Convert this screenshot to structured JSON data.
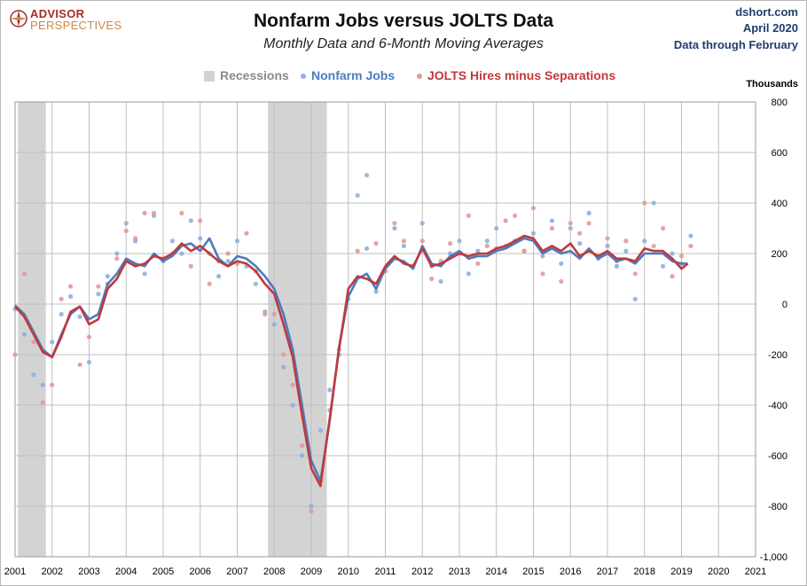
{
  "header": {
    "logo_line1": "ADVISOR",
    "logo_line2": "PERSPECTIVES",
    "title": "Nonfarm Jobs versus JOLTS Data",
    "subtitle": "Monthly Data and 6-Month Moving Averages",
    "source_site": "dshort.com",
    "source_date": "April 2020",
    "source_note": "Data through February"
  },
  "legend": {
    "recessions": "Recessions",
    "nonfarm": "Nonfarm Jobs",
    "jolts": "JOLTS Hires minus Separations"
  },
  "colors": {
    "recession": "#d3d3d3",
    "nonfarm": "#4a7cc0",
    "nonfarm_points": "#8fb0dd",
    "jolts": "#c0393d",
    "jolts_points": "#e09a9c",
    "grid": "#bfbfbf",
    "logo_red": "#a52a2a",
    "logo_orange": "#c98a4b",
    "source_blue": "#1f3d6e"
  },
  "chart_data": {
    "type": "line",
    "title": "Nonfarm Jobs versus JOLTS Data",
    "subtitle": "Monthly Data and 6-Month Moving Averages",
    "ylabel": "Thousands",
    "ylim": [
      -1000,
      800
    ],
    "yticks": [
      -1000,
      -800,
      -600,
      -400,
      -200,
      0,
      200,
      400,
      600,
      800
    ],
    "ytick_labels": [
      "-1,000",
      "-800",
      "-600",
      "-400",
      "-200",
      "0",
      "200",
      "400",
      "600",
      "800"
    ],
    "xlim": [
      2001.0,
      2021.0
    ],
    "xticks": [
      2001,
      2002,
      2003,
      2004,
      2005,
      2006,
      2007,
      2008,
      2009,
      2010,
      2011,
      2012,
      2013,
      2014,
      2015,
      2016,
      2017,
      2018,
      2019,
      2020,
      2021
    ],
    "y_axis_side": "right",
    "grid": true,
    "legend_position": "top-center",
    "recessions": [
      [
        2001.08,
        2001.83
      ],
      [
        2007.83,
        2009.42
      ]
    ],
    "series": [
      {
        "name": "Nonfarm Jobs",
        "kind": "monthly",
        "x": [
          2001.0,
          2001.25,
          2001.5,
          2001.75,
          2002.0,
          2002.25,
          2002.5,
          2002.75,
          2003.0,
          2003.25,
          2003.5,
          2003.75,
          2004.0,
          2004.25,
          2004.5,
          2004.75,
          2005.0,
          2005.25,
          2005.5,
          2005.75,
          2006.0,
          2006.25,
          2006.5,
          2006.75,
          2007.0,
          2007.25,
          2007.5,
          2007.75,
          2008.0,
          2008.25,
          2008.5,
          2008.75,
          2009.0,
          2009.25,
          2009.5,
          2009.75,
          2010.0,
          2010.25,
          2010.5,
          2010.75,
          2011.0,
          2011.25,
          2011.5,
          2011.75,
          2012.0,
          2012.25,
          2012.5,
          2012.75,
          2013.0,
          2013.25,
          2013.5,
          2013.75,
          2014.0,
          2014.25,
          2014.5,
          2014.75,
          2015.0,
          2015.25,
          2015.5,
          2015.75,
          2016.0,
          2016.25,
          2016.5,
          2016.75,
          2017.0,
          2017.25,
          2017.5,
          2017.75,
          2018.0,
          2018.25,
          2018.5,
          2018.75,
          2019.0,
          2019.25
        ],
        "values": [
          -20,
          -120,
          -280,
          -320,
          -150,
          -40,
          30,
          -50,
          -230,
          40,
          110,
          200,
          320,
          250,
          120,
          350,
          170,
          250,
          200,
          330,
          260,
          200,
          110,
          170,
          250,
          150,
          80,
          -30,
          -80,
          -250,
          -400,
          -600,
          -800,
          -500,
          -340,
          -200,
          20,
          430,
          220,
          50,
          130,
          300,
          230,
          150,
          320,
          150,
          90,
          200,
          250,
          120,
          210,
          250,
          300,
          230,
          250,
          210,
          280,
          190,
          330,
          160,
          300,
          240,
          360,
          180,
          230,
          150,
          210,
          20,
          250,
          400,
          150,
          200,
          160,
          270
        ]
      },
      {
        "name": "JOLTS Hires minus Separations",
        "kind": "monthly",
        "x": [
          2001.0,
          2001.25,
          2001.5,
          2001.75,
          2002.0,
          2002.25,
          2002.5,
          2002.75,
          2003.0,
          2003.25,
          2003.5,
          2003.75,
          2004.0,
          2004.25,
          2004.5,
          2004.75,
          2005.0,
          2005.25,
          2005.5,
          2005.75,
          2006.0,
          2006.25,
          2006.5,
          2006.75,
          2007.0,
          2007.25,
          2007.5,
          2007.75,
          2008.0,
          2008.25,
          2008.5,
          2008.75,
          2009.0,
          2009.25,
          2009.5,
          2009.75,
          2010.0,
          2010.25,
          2010.5,
          2010.75,
          2011.0,
          2011.25,
          2011.5,
          2011.75,
          2012.0,
          2012.25,
          2012.5,
          2012.75,
          2013.0,
          2013.25,
          2013.5,
          2013.75,
          2014.0,
          2014.25,
          2014.5,
          2014.75,
          2015.0,
          2015.25,
          2015.5,
          2015.75,
          2016.0,
          2016.25,
          2016.5,
          2016.75,
          2017.0,
          2017.25,
          2017.5,
          2017.75,
          2018.0,
          2018.25,
          2018.5,
          2018.75,
          2019.0,
          2019.25
        ],
        "values": [
          -200,
          120,
          -150,
          -390,
          -320,
          20,
          70,
          -240,
          -130,
          70,
          80,
          180,
          290,
          260,
          360,
          360,
          180,
          200,
          360,
          150,
          330,
          80,
          170,
          200,
          160,
          280,
          130,
          -40,
          -40,
          -200,
          -320,
          -560,
          -820,
          -700,
          -420,
          -180,
          40,
          210,
          510,
          240,
          130,
          320,
          250,
          150,
          250,
          100,
          170,
          240,
          200,
          350,
          160,
          230,
          220,
          330,
          350,
          210,
          380,
          120,
          300,
          90,
          320,
          280,
          320,
          190,
          260,
          170,
          250,
          120,
          400,
          230,
          300,
          110,
          190,
          230
        ]
      },
      {
        "name": "Nonfarm Jobs",
        "kind": "6-month moving average",
        "x": [
          2001.0,
          2001.25,
          2001.5,
          2001.75,
          2002.0,
          2002.25,
          2002.5,
          2002.75,
          2003.0,
          2003.25,
          2003.5,
          2003.75,
          2004.0,
          2004.25,
          2004.5,
          2004.75,
          2005.0,
          2005.25,
          2005.5,
          2005.75,
          2006.0,
          2006.25,
          2006.5,
          2006.75,
          2007.0,
          2007.25,
          2007.5,
          2007.75,
          2008.0,
          2008.25,
          2008.5,
          2008.75,
          2009.0,
          2009.25,
          2009.5,
          2009.75,
          2010.0,
          2010.25,
          2010.5,
          2010.75,
          2011.0,
          2011.25,
          2011.5,
          2011.75,
          2012.0,
          2012.25,
          2012.5,
          2012.75,
          2013.0,
          2013.25,
          2013.5,
          2013.75,
          2014.0,
          2014.25,
          2014.5,
          2014.75,
          2015.0,
          2015.25,
          2015.5,
          2015.75,
          2016.0,
          2016.25,
          2016.5,
          2016.75,
          2017.0,
          2017.25,
          2017.5,
          2017.75,
          2018.0,
          2018.25,
          2018.5,
          2018.75,
          2019.0,
          2019.17
        ],
        "values": [
          -5,
          -40,
          -110,
          -180,
          -210,
          -120,
          -40,
          -10,
          -60,
          -40,
          80,
          120,
          180,
          160,
          150,
          200,
          170,
          190,
          230,
          240,
          210,
          260,
          180,
          150,
          190,
          180,
          150,
          110,
          60,
          -40,
          -180,
          -400,
          -620,
          -700,
          -460,
          -170,
          30,
          100,
          120,
          60,
          140,
          180,
          170,
          140,
          230,
          160,
          150,
          190,
          210,
          180,
          190,
          190,
          210,
          220,
          240,
          260,
          250,
          200,
          220,
          200,
          210,
          180,
          220,
          180,
          200,
          170,
          180,
          160,
          200,
          200,
          200,
          170,
          160,
          160
        ]
      },
      {
        "name": "JOLTS Hires minus Separations",
        "kind": "6-month moving average",
        "x": [
          2001.0,
          2001.25,
          2001.5,
          2001.75,
          2002.0,
          2002.25,
          2002.5,
          2002.75,
          2003.0,
          2003.25,
          2003.5,
          2003.75,
          2004.0,
          2004.25,
          2004.5,
          2004.75,
          2005.0,
          2005.25,
          2005.5,
          2005.75,
          2006.0,
          2006.25,
          2006.5,
          2006.75,
          2007.0,
          2007.25,
          2007.5,
          2007.75,
          2008.0,
          2008.25,
          2008.5,
          2008.75,
          2009.0,
          2009.25,
          2009.5,
          2009.75,
          2010.0,
          2010.25,
          2010.5,
          2010.75,
          2011.0,
          2011.25,
          2011.5,
          2011.75,
          2012.0,
          2012.25,
          2012.5,
          2012.75,
          2013.0,
          2013.25,
          2013.5,
          2013.75,
          2014.0,
          2014.25,
          2014.5,
          2014.75,
          2015.0,
          2015.25,
          2015.5,
          2015.75,
          2016.0,
          2016.25,
          2016.5,
          2016.75,
          2017.0,
          2017.25,
          2017.5,
          2017.75,
          2018.0,
          2018.25,
          2018.5,
          2018.75,
          2019.0,
          2019.17
        ],
        "values": [
          -10,
          -50,
          -120,
          -190,
          -210,
          -130,
          -30,
          -10,
          -80,
          -60,
          60,
          100,
          170,
          150,
          160,
          190,
          180,
          200,
          240,
          210,
          230,
          200,
          170,
          150,
          170,
          160,
          130,
          80,
          40,
          -80,
          -210,
          -440,
          -650,
          -720,
          -450,
          -180,
          60,
          110,
          100,
          80,
          150,
          190,
          160,
          150,
          220,
          150,
          160,
          180,
          200,
          190,
          200,
          200,
          220,
          230,
          250,
          270,
          260,
          210,
          230,
          210,
          240,
          190,
          210,
          190,
          210,
          180,
          180,
          170,
          220,
          210,
          210,
          180,
          140,
          160
        ]
      }
    ]
  }
}
